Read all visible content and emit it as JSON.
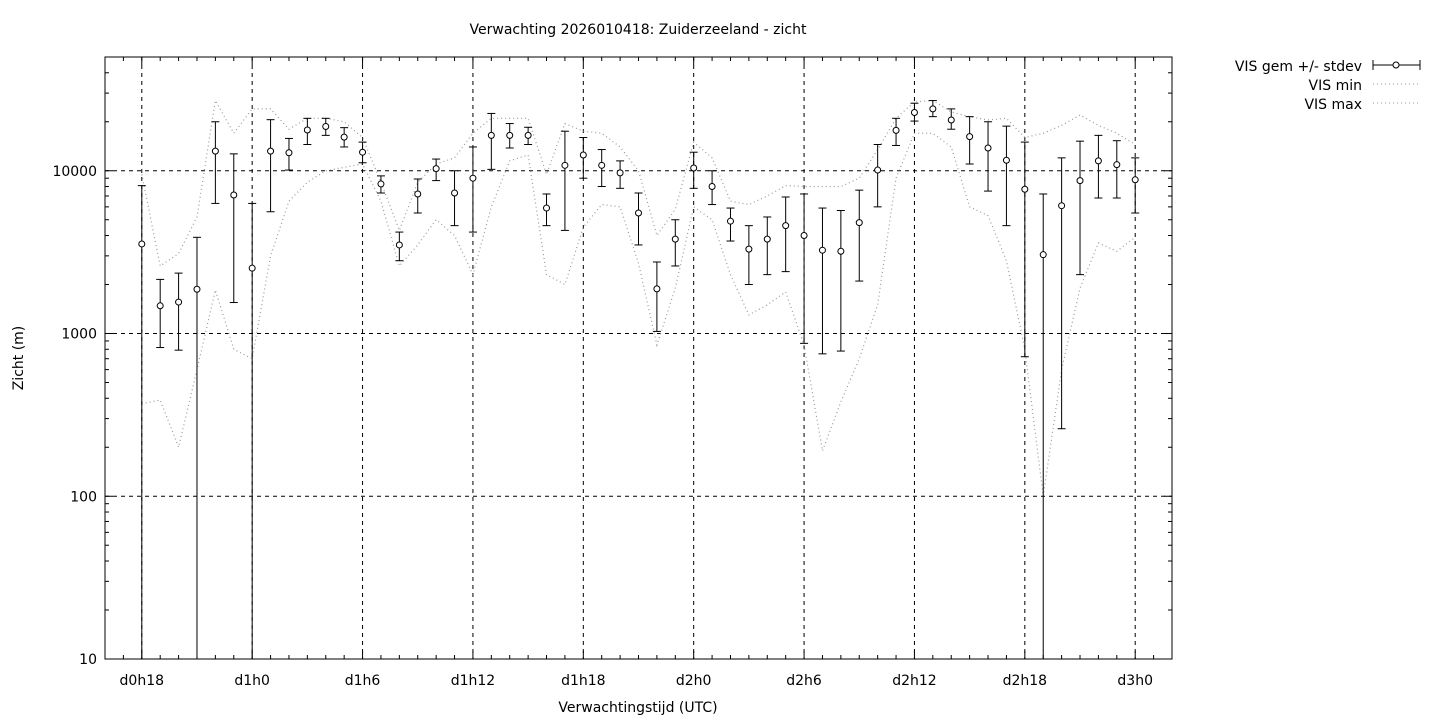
{
  "chart_data": {
    "type": "line",
    "title": "Verwachting 2026010418: Zuiderzeeland - zicht",
    "xlabel": "Verwachtingstijd (UTC)",
    "ylabel": "Zicht (m)",
    "xlim": [
      16,
      74
    ],
    "ylim": [
      10,
      50000
    ],
    "yscale": "log",
    "grid": true,
    "legend_position": "outside-top-right",
    "xticks": [
      {
        "x": 18,
        "label": "d0h18"
      },
      {
        "x": 24,
        "label": "d1h0"
      },
      {
        "x": 30,
        "label": "d1h6"
      },
      {
        "x": 36,
        "label": "d1h12"
      },
      {
        "x": 42,
        "label": "d1h18"
      },
      {
        "x": 48,
        "label": "d2h0"
      },
      {
        "x": 54,
        "label": "d2h6"
      },
      {
        "x": 60,
        "label": "d2h12"
      },
      {
        "x": 66,
        "label": "d2h18"
      },
      {
        "x": 72,
        "label": "d3h0"
      }
    ],
    "yticks": [
      {
        "y": 10,
        "label": "10"
      },
      {
        "y": 100,
        "label": "100"
      },
      {
        "y": 1000,
        "label": "1000"
      },
      {
        "y": 10000,
        "label": "10000"
      }
    ],
    "x": [
      18,
      19,
      20,
      21,
      22,
      23,
      24,
      25,
      26,
      27,
      28,
      29,
      30,
      31,
      32,
      33,
      34,
      35,
      36,
      37,
      38,
      39,
      40,
      41,
      42,
      43,
      44,
      45,
      46,
      47,
      48,
      49,
      50,
      51,
      52,
      53,
      54,
      55,
      56,
      57,
      58,
      59,
      60,
      61,
      62,
      63,
      64,
      65,
      66,
      67,
      68,
      69,
      70,
      71,
      72
    ],
    "series": [
      {
        "name": "VIS gem +/- stdev",
        "style": "errorbars",
        "mean": [
          3550,
          1480,
          1560,
          1870,
          13200,
          7100,
          2520,
          13200,
          12900,
          17800,
          18700,
          16100,
          13000,
          8300,
          3500,
          7200,
          10300,
          7300,
          9000,
          16500,
          16500,
          16500,
          5900,
          10800,
          12500,
          10800,
          9700,
          5500,
          1880,
          3800,
          10400,
          8000,
          4900,
          3300,
          3800,
          4600,
          4000,
          3250,
          3200,
          4800,
          10100,
          17700,
          22800,
          24000,
          20500,
          16200,
          13800,
          11600,
          7700,
          3050,
          6100,
          8700,
          11500,
          10900,
          8800
        ],
        "low": [
          10,
          820,
          790,
          10,
          6300,
          1550,
          10,
          5600,
          10100,
          14500,
          16500,
          14000,
          11200,
          7300,
          2800,
          5500,
          8700,
          4600,
          4200,
          10200,
          13800,
          14500,
          4600,
          4300,
          9000,
          8000,
          7800,
          3500,
          1030,
          2600,
          7800,
          6200,
          3700,
          2000,
          2300,
          2400,
          870,
          750,
          780,
          2100,
          6000,
          14300,
          20200,
          21500,
          18000,
          11000,
          7500,
          4600,
          720,
          10,
          260,
          2300,
          6800,
          6800,
          5500
        ],
        "high": [
          8100,
          2150,
          2350,
          3900,
          20000,
          12700,
          6300,
          20600,
          15800,
          21000,
          21000,
          18400,
          15000,
          9300,
          4200,
          8900,
          11800,
          10000,
          14000,
          22500,
          19500,
          18500,
          7200,
          17500,
          16000,
          13500,
          11500,
          7300,
          2750,
          5000,
          13000,
          10000,
          5900,
          4600,
          5200,
          6900,
          7200,
          5900,
          5700,
          7600,
          14500,
          21000,
          26000,
          27000,
          24000,
          21500,
          20000,
          18800,
          15000,
          7200,
          12000,
          15200,
          16500,
          15300,
          12000
        ]
      },
      {
        "name": "VIS min",
        "style": "dotted",
        "values": [
          370,
          390,
          200,
          600,
          1850,
          800,
          700,
          3000,
          6500,
          8500,
          10000,
          10500,
          11000,
          6500,
          2600,
          3500,
          5000,
          4000,
          2300,
          6000,
          11500,
          12500,
          2300,
          2000,
          4500,
          6200,
          6000,
          2700,
          850,
          1900,
          6000,
          5000,
          2300,
          1300,
          1500,
          1800,
          850,
          190,
          380,
          700,
          1500,
          9000,
          17000,
          17000,
          14000,
          6000,
          5300,
          2800,
          800,
          100,
          600,
          1900,
          3600,
          3200,
          3900
        ]
      },
      {
        "name": "VIS max",
        "style": "dotted",
        "values": [
          9500,
          2600,
          3100,
          5200,
          27000,
          17000,
          24000,
          24000,
          18000,
          21000,
          21000,
          20000,
          16000,
          8500,
          4300,
          8500,
          11000,
          12000,
          17000,
          21000,
          21000,
          21000,
          9500,
          19500,
          17500,
          17000,
          14000,
          10000,
          4000,
          5800,
          15000,
          12000,
          6500,
          6200,
          7000,
          8100,
          8000,
          8000,
          8000,
          9000,
          13500,
          21000,
          26500,
          27000,
          23000,
          21500,
          20500,
          21000,
          16000,
          17000,
          19000,
          22000,
          19000,
          17000,
          14500
        ]
      }
    ],
    "colors": {
      "series": "#000000",
      "dotted": "#999999",
      "grid": "#000000"
    }
  }
}
